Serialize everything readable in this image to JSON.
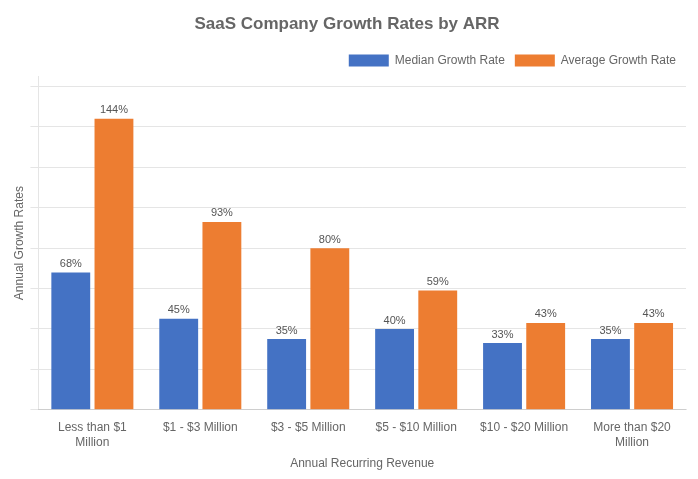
{
  "chart_data": {
    "type": "bar",
    "title": "SaaS Company Growth Rates by ARR",
    "xlabel": "Annual Recurring Revenue",
    "ylabel": "Annual Growth Rates",
    "categories": [
      "Less than $1\nMillion",
      "$1 - $3 Million",
      "$3 - $5 Million",
      "$5 - $10 Million",
      "$10 - $20 Million",
      "More than $20\nMillion"
    ],
    "series": [
      {
        "name": "Median Growth Rate",
        "color": "#4472C4",
        "values": [
          68,
          45,
          35,
          40,
          33,
          35
        ],
        "value_labels": [
          "68%",
          "45%",
          "35%",
          "40%",
          "33%",
          "35%"
        ]
      },
      {
        "name": "Average Growth Rate",
        "color": "#ED7D31",
        "values": [
          144,
          93,
          80,
          59,
          43,
          43
        ],
        "value_labels": [
          "144%",
          "93%",
          "80%",
          "59%",
          "43%",
          "43%"
        ]
      }
    ],
    "ylim": [
      0,
      165
    ],
    "yticks": [
      0,
      20,
      40,
      60,
      80,
      100,
      120,
      140,
      160
    ],
    "grid": true,
    "legend": "upper right",
    "data_labels": true,
    "tick_labels": "x"
  }
}
